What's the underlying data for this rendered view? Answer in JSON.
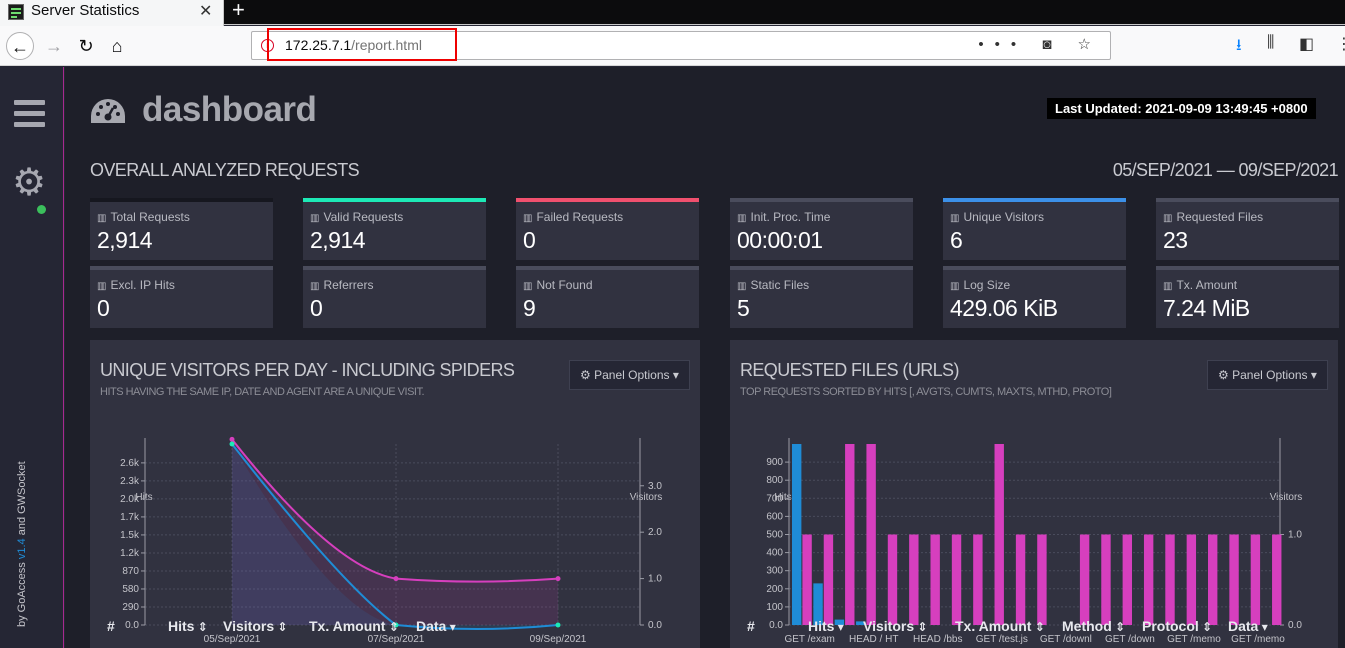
{
  "browser": {
    "tab_title": "Server Statistics",
    "url_host": "172.25.7.1",
    "url_path": "/report.html",
    "colors": {
      "tabbar": "#0c0c0d",
      "url_highlight": "#e00000"
    }
  },
  "sidebar": {
    "menu_icon": "hamburger-icon",
    "settings_icon": "gear-icon",
    "credits_prefix": "by GoAccess ",
    "credits_version": "v1.4",
    "credits_suffix": " and GWSocket",
    "status_color": "#3bbf5c"
  },
  "header": {
    "title": "dashboard",
    "icon": "dashboard-gauge-icon",
    "last_updated": "Last Updated: 2021-09-09 13:49:45 +0800"
  },
  "overall": {
    "title": "OVERALL ANALYZED REQUESTS",
    "date_range": "05/SEP/2021 — 09/SEP/2021",
    "cards": [
      {
        "label": "Total Requests",
        "value": "2,914",
        "accent": "#16171f"
      },
      {
        "label": "Valid Requests",
        "value": "2,914",
        "accent": "#1de9b6"
      },
      {
        "label": "Failed Requests",
        "value": "0",
        "accent": "#f0506e"
      },
      {
        "label": "Init. Proc. Time",
        "value": "00:00:01",
        "accent": "#4a4c5c"
      },
      {
        "label": "Unique Visitors",
        "value": "6",
        "accent": "#3c90e8"
      },
      {
        "label": "Requested Files",
        "value": "23",
        "accent": "#4a4c5c"
      },
      {
        "label": "Excl. IP Hits",
        "value": "0",
        "accent": "#4a4c5c"
      },
      {
        "label": "Referrers",
        "value": "0",
        "accent": "#4a4c5c"
      },
      {
        "label": "Not Found",
        "value": "9",
        "accent": "#4a4c5c"
      },
      {
        "label": "Static Files",
        "value": "5",
        "accent": "#4a4c5c"
      },
      {
        "label": "Log Size",
        "value": "429.06 KiB",
        "accent": "#4a4c5c"
      },
      {
        "label": "Tx. Amount",
        "value": "7.24 MiB",
        "accent": "#4a4c5c"
      }
    ]
  },
  "visitors_panel": {
    "title": "UNIQUE VISITORS PER DAY - INCLUDING SPIDERS",
    "subtitle": "HITS HAVING THE SAME IP, DATE AND AGENT ARE A UNIQUE VISIT.",
    "options_label": "Panel Options",
    "table_headers": [
      "#",
      "Hits",
      "Visitors",
      "Tx. Amount",
      "Data"
    ]
  },
  "files_panel": {
    "title": "REQUESTED FILES (URLS)",
    "subtitle": "TOP REQUESTS SORTED BY HITS [, AVGTS, CUMTS, MAXTS, MTHD, PROTO]",
    "options_label": "Panel Options",
    "table_headers": [
      "#",
      "Hits",
      "Visitors",
      "Tx. Amount",
      "Method",
      "Protocol",
      "Data"
    ]
  },
  "chart_data": [
    {
      "type": "line",
      "title": "UNIQUE VISITORS PER DAY - INCLUDING SPIDERS",
      "x": [
        "05/Sep/2021",
        "07/Sep/2021",
        "09/Sep/2021"
      ],
      "series": [
        {
          "name": "Hits",
          "axis": "left",
          "color": "#1f8cd6",
          "values": [
            2914,
            0,
            0
          ]
        },
        {
          "name": "Visitors",
          "axis": "right",
          "color": "#d63fbe",
          "values": [
            4,
            1,
            1
          ]
        }
      ],
      "ylabel_left": "Hits",
      "ylabel_right": "Visitors",
      "yticks_left": [
        "0.0",
        "290",
        "580",
        "870",
        "1.2k",
        "1.5k",
        "1.7k",
        "2.0k",
        "2.3k",
        "2.6k"
      ],
      "ytick_values_left": [
        0,
        290,
        580,
        870,
        1160,
        1450,
        1740,
        2030,
        2320,
        2610
      ],
      "yticks_right": [
        "0.0",
        "1.0",
        "2.0",
        "3.0"
      ],
      "ytick_values_right": [
        0,
        1,
        2,
        3
      ],
      "ylim_left": [
        0,
        2914
      ],
      "ylim_right": [
        0,
        3.9
      ],
      "legend": [
        "Hits",
        "Visitors"
      ]
    },
    {
      "type": "bar",
      "title": "REQUESTED FILES (URLS)",
      "x_labels": [
        "GET /exam",
        "HEAD / HT",
        "HEAD /bbs",
        "GET /test.js",
        "GET /downl",
        "GET /down",
        "GET /memo",
        "GET /memo"
      ],
      "categories": 23,
      "series": [
        {
          "name": "Hits",
          "axis": "left",
          "color": "#1f8cd6",
          "values": [
            1000,
            230,
            30,
            20,
            0,
            0,
            0,
            0,
            0,
            0,
            0,
            0,
            0,
            0,
            0,
            0,
            0,
            0,
            0,
            0,
            0,
            0,
            0
          ]
        },
        {
          "name": "Visitors",
          "axis": "right",
          "color": "#d63fbe",
          "values": [
            1,
            1,
            2,
            2,
            1,
            1,
            1,
            1,
            1,
            2,
            1,
            1,
            0,
            1,
            1,
            1,
            1,
            1,
            1,
            1,
            1,
            1,
            1
          ]
        }
      ],
      "ylabel_left": "Hits",
      "ylabel_right": "Visitors",
      "yticks_left": [
        "0.0",
        "100",
        "200",
        "300",
        "400",
        "500",
        "600",
        "700",
        "800",
        "900"
      ],
      "ytick_values_left": [
        0,
        100,
        200,
        300,
        400,
        500,
        600,
        700,
        800,
        900
      ],
      "yticks_right": [
        "0.0",
        "1.0"
      ],
      "ytick_values_right": [
        0,
        1
      ],
      "ylim_left": [
        0,
        1000
      ],
      "ylim_right": [
        0,
        2
      ],
      "legend": [
        "Hits",
        "Visitors"
      ]
    }
  ]
}
